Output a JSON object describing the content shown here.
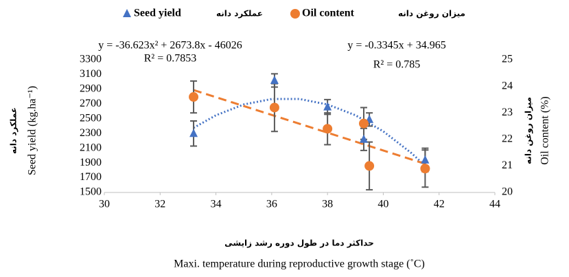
{
  "chart_data": {
    "type": "scatter",
    "x": [
      33.2,
      36.1,
      38,
      39.3,
      39.5,
      41.5
    ],
    "series": [
      {
        "name": "Seed yield",
        "name_fa": "عملکرد دانه",
        "color": "#4472c4",
        "marker": "triangle",
        "axis": "y",
        "values": [
          2300,
          3020,
          2660,
          2220,
          2490,
          1940
        ],
        "errors": [
          170,
          90,
          100,
          150,
          90,
          160
        ]
      },
      {
        "name": "Oil content",
        "name_fa": "میزان روغن دانه",
        "color": "#ed7d31",
        "marker": "circle",
        "axis": "y2",
        "values": [
          23.6,
          23.2,
          22.4,
          22.6,
          21.0,
          20.9
        ],
        "errors": [
          0.6,
          0.9,
          0.6,
          0.6,
          0.9,
          0.7
        ]
      }
    ],
    "trendlines": [
      {
        "color": "#4472c4",
        "style": "dotted",
        "axis": "y",
        "x": [
          33.2,
          34,
          35,
          36,
          37,
          38,
          39,
          40,
          41,
          41.5
        ],
        "values": [
          2377,
          2547,
          2694,
          2768,
          2768,
          2694,
          2548,
          2329,
          2037,
          1863
        ]
      },
      {
        "color": "#ed7d31",
        "style": "dashed",
        "axis": "y2",
        "x": [
          33.2,
          41.5
        ],
        "values": [
          23.86,
          21.08
        ]
      }
    ],
    "annotations": [
      {
        "text": "y = -36.623x² + 2673.8x - 46026",
        "color": "#4472c4"
      },
      {
        "text": "R² = 0.7853",
        "color": "#4472c4"
      },
      {
        "text": "y = -0.3345x + 34.965",
        "color": "#ed7d31"
      },
      {
        "text": "R² = 0.785",
        "color": "#ed7d31"
      }
    ],
    "ylabel": "Seed yield (kg.ha⁻¹)",
    "ylabel_fa": "عملکرد دانه",
    "y2label": "Oil content (%)",
    "y2label_fa": "میزان روغن دانه",
    "xlabel": "Maxi. temperature during reproductive growth stage (˚C)",
    "xlabel_fa": "حداکثر دما در طول دوره رشد زایشی",
    "xlim": [
      30,
      44
    ],
    "xticks": [
      30,
      32,
      34,
      36,
      38,
      40,
      42,
      44
    ],
    "ylim": [
      1500,
      3300
    ],
    "yticks": [
      1500,
      1700,
      1900,
      2100,
      2300,
      2500,
      2700,
      2900,
      3100,
      3300
    ],
    "y2lim": [
      20,
      25
    ],
    "y2ticks": [
      20,
      21,
      22,
      23,
      24,
      25
    ],
    "error_color": "#595959"
  }
}
